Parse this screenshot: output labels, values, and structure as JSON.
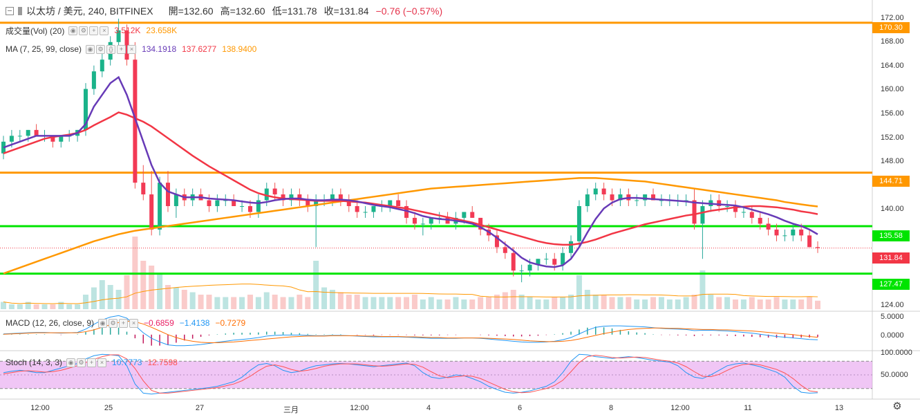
{
  "header": {
    "symbol": "以太坊 / 美元, 240, BITFINEX",
    "open": "開=132.60",
    "high": "高=132.60",
    "low": "低=131.78",
    "close": "收=131.84",
    "change": "−0.76 (−0.57%)",
    "colors": {
      "change": "#e5334b"
    }
  },
  "indicators": {
    "volume": {
      "label": "成交量(Vol) (20)",
      "v1": "3.512K",
      "v2": "23.658K",
      "color1": "#f23645",
      "color2": "#ff9800"
    },
    "ma": {
      "label": "MA (7, 25, 99, close)",
      "v1": "134.1918",
      "v2": "137.6277",
      "v3": "138.9400",
      "colors": [
        "#673ab7",
        "#f23645",
        "#ff9800"
      ]
    },
    "macd": {
      "label": "MACD (12, 26, close, 9)",
      "v1": "−0.6859",
      "v2": "−1.4138",
      "v3": "−0.7279",
      "colors": [
        "#e91e63",
        "#2196f3",
        "#ff6d00"
      ]
    },
    "stoch": {
      "label": "Stoch (14, 3, 3)",
      "v1": "10.7773",
      "v2": "12.7598",
      "colors": [
        "#2196f3",
        "#ff5252"
      ]
    }
  },
  "price_axis": {
    "labels": [
      "172.00",
      "168.00",
      "164.00",
      "160.00",
      "156.00",
      "152.00",
      "148.00",
      "140.00",
      "135.58",
      "124.00"
    ],
    "tags": [
      {
        "text": "170.30",
        "color": "#ff9800"
      },
      {
        "text": "144.71",
        "color": "#ff9800"
      },
      {
        "text": "135.58",
        "color": "#00e400"
      },
      {
        "text": "131.84",
        "color": "#f23645"
      },
      {
        "text": "127.47",
        "color": "#00e400"
      }
    ]
  },
  "macd_axis": {
    "labels": [
      "5.0000",
      "0.0000"
    ]
  },
  "stoch_axis": {
    "labels": [
      "100.0000",
      "50.0000"
    ]
  },
  "time_axis": {
    "labels": [
      "12:00",
      "25",
      "27",
      "三月",
      "12:00",
      "4",
      "6",
      "8",
      "12:00",
      "11",
      "13"
    ]
  },
  "chart_data": {
    "type": "line",
    "title": "以太坊 / 美元, 240, BITFINEX",
    "candles": [
      [
        148,
        151,
        147,
        150
      ],
      [
        150,
        152,
        149,
        151
      ],
      [
        151,
        152,
        150,
        151
      ],
      [
        151,
        152,
        150,
        152
      ],
      [
        152,
        153,
        151,
        151
      ],
      [
        151,
        152,
        150,
        151
      ],
      [
        151,
        151,
        149,
        150
      ],
      [
        150,
        151,
        149,
        151
      ],
      [
        151,
        152,
        150,
        151
      ],
      [
        151,
        152,
        150,
        152
      ],
      [
        152,
        160,
        151,
        159
      ],
      [
        159,
        163,
        158,
        162
      ],
      [
        162,
        166,
        161,
        164
      ],
      [
        164,
        168,
        163,
        167
      ],
      [
        167,
        171,
        166,
        169
      ],
      [
        169,
        170,
        163,
        164
      ],
      [
        164,
        167,
        142,
        143
      ],
      [
        143,
        146,
        140,
        141
      ],
      [
        141,
        145,
        134,
        135
      ],
      [
        135,
        144,
        134,
        143
      ],
      [
        143,
        145,
        138,
        139
      ],
      [
        139,
        142,
        137,
        141
      ],
      [
        141,
        142,
        139,
        140
      ],
      [
        140,
        142,
        139,
        141
      ],
      [
        141,
        142,
        140,
        140
      ],
      [
        140,
        141,
        138,
        139
      ],
      [
        139,
        141,
        138,
        140
      ],
      [
        140,
        141,
        139,
        140
      ],
      [
        140,
        141,
        139,
        139
      ],
      [
        139,
        140,
        138,
        139
      ],
      [
        139,
        140,
        137,
        138
      ],
      [
        138,
        141,
        137,
        140
      ],
      [
        140,
        143,
        139,
        142
      ],
      [
        142,
        143,
        140,
        141
      ],
      [
        141,
        142,
        139,
        140
      ],
      [
        140,
        142,
        139,
        141
      ],
      [
        141,
        142,
        139,
        140
      ],
      [
        140,
        141,
        138,
        139
      ],
      [
        139,
        141,
        132,
        140
      ],
      [
        140,
        141,
        139,
        140
      ],
      [
        140,
        142,
        139,
        141
      ],
      [
        141,
        142,
        139,
        140
      ],
      [
        140,
        141,
        138,
        139
      ],
      [
        139,
        140,
        137,
        138
      ],
      [
        138,
        139,
        137,
        138
      ],
      [
        138,
        139,
        137,
        139
      ],
      [
        139,
        140,
        138,
        139
      ],
      [
        139,
        140,
        138,
        140
      ],
      [
        140,
        141,
        139,
        139
      ],
      [
        139,
        140,
        136,
        137
      ],
      [
        137,
        138,
        135,
        136
      ],
      [
        136,
        137,
        134,
        136
      ],
      [
        136,
        137,
        135,
        137
      ],
      [
        137,
        138,
        136,
        137
      ],
      [
        137,
        138,
        136,
        136
      ],
      [
        136,
        138,
        135,
        137
      ],
      [
        137,
        138,
        136,
        138
      ],
      [
        138,
        139,
        137,
        137
      ],
      [
        137,
        137,
        134,
        135
      ],
      [
        135,
        136,
        133,
        134
      ],
      [
        134,
        135,
        131,
        132
      ],
      [
        132,
        133,
        130,
        131
      ],
      [
        131,
        132,
        127,
        128
      ],
      [
        128,
        129,
        126,
        128
      ],
      [
        128,
        130,
        127,
        129
      ],
      [
        129,
        130,
        128,
        130
      ],
      [
        130,
        131,
        129,
        130
      ],
      [
        130,
        131,
        128,
        129
      ],
      [
        129,
        132,
        128,
        131
      ],
      [
        131,
        134,
        130,
        133
      ],
      [
        133,
        140,
        132,
        139
      ],
      [
        139,
        142,
        138,
        141
      ],
      [
        141,
        143,
        140,
        142
      ],
      [
        142,
        143,
        140,
        141
      ],
      [
        141,
        142,
        139,
        140
      ],
      [
        140,
        142,
        139,
        141
      ],
      [
        141,
        142,
        139,
        140
      ],
      [
        140,
        141,
        139,
        140
      ],
      [
        140,
        141,
        139,
        141
      ],
      [
        141,
        142,
        140,
        140
      ],
      [
        140,
        141,
        139,
        140
      ],
      [
        140,
        141,
        139,
        140
      ],
      [
        140,
        141,
        139,
        140
      ],
      [
        140,
        141,
        139,
        140
      ],
      [
        140,
        142,
        135,
        136
      ],
      [
        136,
        140,
        130,
        139
      ],
      [
        139,
        141,
        138,
        140
      ],
      [
        140,
        141,
        138,
        139
      ],
      [
        139,
        140,
        138,
        139
      ],
      [
        139,
        140,
        137,
        138
      ],
      [
        138,
        139,
        137,
        138
      ],
      [
        138,
        139,
        136,
        137
      ],
      [
        137,
        138,
        135,
        136
      ],
      [
        136,
        137,
        134,
        135
      ],
      [
        135,
        136,
        133,
        134
      ],
      [
        134,
        135,
        133,
        134
      ],
      [
        134,
        136,
        133,
        135
      ],
      [
        135,
        136,
        133,
        134
      ],
      [
        134,
        135,
        132,
        132
      ],
      [
        132,
        133,
        131,
        131.84
      ]
    ],
    "price_lines": [
      {
        "name": "170.30",
        "y": 170.3,
        "color": "#ff9800"
      },
      {
        "name": "144.71",
        "y": 144.71,
        "color": "#ff9800"
      },
      {
        "name": "135.58",
        "y": 135.58,
        "color": "#00e400"
      },
      {
        "name": "127.47",
        "y": 127.47,
        "color": "#00e400"
      }
    ],
    "ylim": [
      122,
      173
    ],
    "ma7": [
      149,
      149.5,
      150,
      150.5,
      151,
      151,
      151,
      151,
      151,
      151.5,
      153,
      156,
      158,
      160,
      161,
      158,
      154,
      150,
      146,
      143,
      141.5,
      141,
      140.5,
      140.5,
      140.5,
      140.3,
      140.2,
      140.1,
      140,
      139.8,
      139.6,
      139.5,
      139.7,
      140,
      140.2,
      140.3,
      140.3,
      140.1,
      140,
      140,
      140.1,
      140.1,
      140,
      139.8,
      139.5,
      139.2,
      139,
      138.8,
      138.5,
      138.2,
      137.8,
      137.3,
      137,
      136.8,
      136.7,
      136.5,
      136.3,
      136,
      135.4,
      134.6,
      133.6,
      132.5,
      131.4,
      130.2,
      129.4,
      129,
      128.7,
      128.6,
      128.9,
      130,
      132,
      134.5,
      136.8,
      138.6,
      139.6,
      140.2,
      140.4,
      140.4,
      140.3,
      140.2,
      140.1,
      140,
      139.9,
      139.8,
      139.6,
      139.5,
      139.4,
      139.3,
      139.2,
      139.1,
      138.8,
      138.4,
      138,
      137.6,
      137.1,
      136.5,
      136,
      135.6,
      135,
      134.19
    ],
    "ma25": [
      148,
      148.5,
      149,
      149.5,
      150,
      150.5,
      150.8,
      151,
      151.2,
      151.5,
      152,
      152.8,
      153.5,
      154.2,
      155,
      154.6,
      154,
      153.4,
      152.6,
      151.6,
      150.6,
      149.6,
      148.6,
      147.6,
      146.7,
      145.8,
      145,
      144.2,
      143.4,
      142.6,
      141.8,
      141.2,
      140.8,
      140.5,
      140.3,
      140.2,
      140.1,
      140,
      139.9,
      139.9,
      139.9,
      139.9,
      139.8,
      139.7,
      139.6,
      139.4,
      139.2,
      139,
      138.8,
      138.6,
      138.3,
      138,
      137.7,
      137.4,
      137.1,
      136.8,
      136.5,
      136.2,
      135.8,
      135.4,
      135,
      134.6,
      134.2,
      133.8,
      133.4,
      133,
      132.7,
      132.5,
      132.4,
      132.4,
      132.6,
      132.9,
      133.3,
      133.8,
      134.3,
      134.7,
      135.1,
      135.5,
      135.9,
      136.2,
      136.5,
      136.8,
      137.1,
      137.4,
      137.6,
      137.9,
      138.2,
      138.4,
      138.6,
      138.8,
      138.9,
      139,
      139,
      138.9,
      138.8,
      138.6,
      138.4,
      138.1,
      137.9,
      137.63
    ],
    "ma99": [
      127.5,
      128,
      128.5,
      129,
      129.5,
      130,
      130.5,
      131,
      131.5,
      132,
      132.5,
      133,
      133.4,
      133.8,
      134.2,
      134.5,
      134.8,
      135,
      135.2,
      135.4,
      135.6,
      135.8,
      136,
      136.2,
      136.4,
      136.6,
      136.8,
      137,
      137.2,
      137.4,
      137.6,
      137.8,
      138,
      138.2,
      138.4,
      138.6,
      138.8,
      139,
      139.2,
      139.4,
      139.6,
      139.8,
      140,
      140.2,
      140.4,
      140.6,
      140.8,
      141,
      141.2,
      141.4,
      141.6,
      141.8,
      142,
      142.1,
      142.2,
      142.3,
      142.4,
      142.5,
      142.6,
      142.7,
      142.8,
      142.9,
      143,
      143.1,
      143.2,
      143.3,
      143.4,
      143.5,
      143.6,
      143.7,
      143.8,
      143.8,
      143.8,
      143.7,
      143.6,
      143.5,
      143.4,
      143.3,
      143.2,
      143,
      142.8,
      142.6,
      142.4,
      142.2,
      142,
      141.8,
      141.6,
      141.4,
      141.2,
      141,
      140.8,
      140.6,
      140.4,
      140.2,
      140,
      139.7,
      139.5,
      139.3,
      139.1,
      138.94
    ],
    "volume": [
      3,
      2,
      2,
      3,
      2,
      2,
      2,
      3,
      2,
      2,
      6,
      9,
      12,
      10,
      8,
      14,
      30,
      20,
      18,
      15,
      10,
      9,
      8,
      7,
      6,
      6,
      5,
      5,
      5,
      5,
      6,
      5,
      7,
      6,
      5,
      5,
      6,
      5,
      20,
      9,
      8,
      7,
      6,
      6,
      5,
      5,
      5,
      5,
      5,
      5,
      6,
      4,
      5,
      4,
      4,
      5,
      4,
      4,
      5,
      5,
      6,
      7,
      8,
      6,
      5,
      4,
      4,
      5,
      5,
      6,
      14,
      8,
      6,
      6,
      5,
      5,
      5,
      4,
      4,
      5,
      5,
      4,
      4,
      5,
      6,
      16,
      6,
      5,
      5,
      4,
      4,
      5,
      4,
      4,
      5,
      4,
      4,
      4,
      5,
      3.5
    ],
    "macd": [
      0.2,
      0.3,
      0.4,
      0.5,
      0.6,
      0.6,
      0.5,
      0.4,
      0.5,
      0.6,
      1.5,
      2.8,
      4,
      4.8,
      5.2,
      4.5,
      2.5,
      0.5,
      -1,
      -2,
      -2.8,
      -3,
      -3,
      -2.9,
      -2.7,
      -2.4,
      -2.1,
      -1.8,
      -1.5,
      -1.3,
      -1.1,
      -0.8,
      -0.4,
      -0.2,
      -0.1,
      -0.1,
      -0.1,
      -0.2,
      -0.3,
      -0.3,
      -0.2,
      -0.2,
      -0.3,
      -0.4,
      -0.5,
      -0.6,
      -0.6,
      -0.6,
      -0.6,
      -0.7,
      -0.8,
      -0.9,
      -1,
      -1,
      -1,
      -1,
      -0.9,
      -0.9,
      -1,
      -1.2,
      -1.4,
      -1.6,
      -1.8,
      -2,
      -2.1,
      -2.1,
      -2,
      -1.8,
      -1.4,
      -0.8,
      0.2,
      1.2,
      2,
      2.3,
      2.4,
      2.4,
      2.3,
      2.2,
      2.1,
      1.9,
      1.7,
      1.6,
      1.5,
      1.4,
      1.1,
      1.2,
      1.2,
      1.1,
      1,
      0.8,
      0.6,
      0.4,
      0.1,
      -0.2,
      -0.5,
      -0.7,
      -0.9,
      -1.1,
      -1.3,
      -1.41
    ],
    "signal": [
      0.1,
      0.2,
      0.3,
      0.4,
      0.5,
      0.5,
      0.5,
      0.5,
      0.5,
      0.5,
      0.8,
      1.3,
      2,
      2.7,
      3.3,
      3.7,
      3.5,
      2.9,
      2,
      1,
      0,
      -0.8,
      -1.4,
      -1.8,
      -2.1,
      -2.2,
      -2.2,
      -2.1,
      -2,
      -1.8,
      -1.6,
      -1.4,
      -1.2,
      -1,
      -0.8,
      -0.6,
      -0.5,
      -0.4,
      -0.4,
      -0.4,
      -0.3,
      -0.3,
      -0.3,
      -0.3,
      -0.4,
      -0.4,
      -0.5,
      -0.5,
      -0.5,
      -0.6,
      -0.6,
      -0.7,
      -0.8,
      -0.8,
      -0.9,
      -0.9,
      -0.9,
      -0.9,
      -0.9,
      -1,
      -1.1,
      -1.2,
      -1.3,
      -1.5,
      -1.7,
      -1.8,
      -1.9,
      -1.9,
      -1.8,
      -1.6,
      -1.2,
      -0.7,
      -0.2,
      0.3,
      0.7,
      1.1,
      1.4,
      1.6,
      1.7,
      1.8,
      1.8,
      1.7,
      1.7,
      1.6,
      1.5,
      1.4,
      1.4,
      1.3,
      1.3,
      1.2,
      1.1,
      1,
      0.8,
      0.6,
      0.4,
      0.2,
      0,
      -0.3,
      -0.5,
      -0.73
    ],
    "stoch_k": [
      55,
      58,
      60,
      58,
      55,
      55,
      60,
      65,
      70,
      75,
      85,
      92,
      95,
      94,
      92,
      70,
      30,
      10,
      8,
      10,
      12,
      14,
      16,
      18,
      20,
      22,
      25,
      30,
      35,
      45,
      60,
      72,
      75,
      70,
      60,
      55,
      58,
      65,
      70,
      72,
      74,
      75,
      74,
      72,
      70,
      68,
      70,
      72,
      74,
      76,
      70,
      55,
      45,
      42,
      45,
      50,
      48,
      42,
      35,
      25,
      18,
      12,
      10,
      12,
      15,
      20,
      25,
      35,
      55,
      80,
      95,
      94,
      90,
      88,
      86,
      88,
      90,
      88,
      85,
      82,
      80,
      78,
      70,
      55,
      45,
      42,
      50,
      60,
      70,
      74,
      76,
      72,
      68,
      62,
      56,
      45,
      25,
      12,
      10,
      10.78
    ],
    "stoch_d": [
      52,
      55,
      58,
      59,
      58,
      56,
      57,
      60,
      65,
      70,
      77,
      84,
      90,
      94,
      94,
      85,
      64,
      37,
      16,
      10,
      10,
      12,
      14,
      16,
      18,
      20,
      22,
      26,
      30,
      37,
      47,
      59,
      69,
      72,
      68,
      62,
      58,
      60,
      64,
      69,
      72,
      74,
      74,
      74,
      72,
      70,
      69,
      70,
      72,
      74,
      73,
      67,
      57,
      48,
      44,
      46,
      48,
      47,
      42,
      34,
      26,
      18,
      13,
      11,
      12,
      16,
      20,
      27,
      38,
      57,
      77,
      90,
      93,
      91,
      88,
      87,
      88,
      89,
      88,
      85,
      82,
      80,
      76,
      68,
      57,
      47,
      46,
      51,
      60,
      68,
      73,
      74,
      72,
      67,
      62,
      54,
      42,
      27,
      15,
      12.76
    ]
  }
}
